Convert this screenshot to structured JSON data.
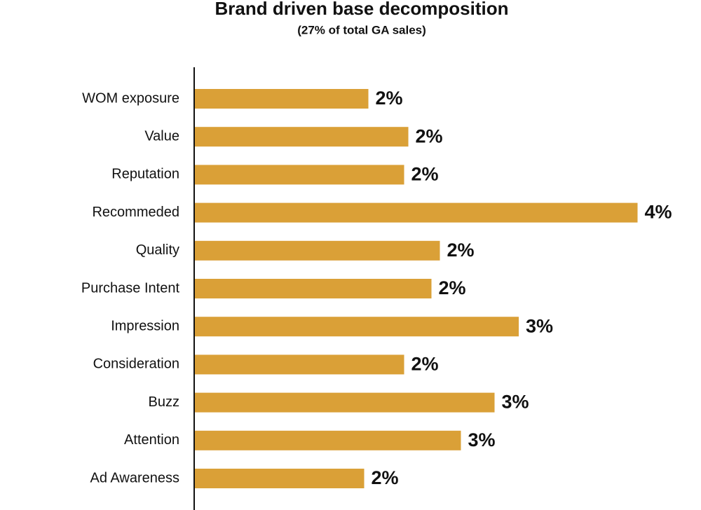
{
  "chart_data": {
    "type": "bar",
    "orientation": "horizontal",
    "title": "Brand driven base decomposition",
    "subtitle": "(27% of total GA sales)",
    "categories": [
      "WOM exposure",
      "Value",
      "Reputation",
      "Recommeded",
      "Quality",
      "Purchase Intent",
      "Impression",
      "Consideration",
      "Buzz",
      "Attention",
      "Ad Awareness"
    ],
    "values": [
      1.65,
      2.03,
      1.99,
      4.21,
      2.33,
      2.25,
      3.08,
      1.99,
      2.85,
      2.53,
      1.61
    ],
    "value_labels": [
      "2%",
      "2%",
      "2%",
      "4%",
      "2%",
      "2%",
      "3%",
      "2%",
      "3%",
      "3%",
      "2%"
    ],
    "color": "#DAA037"
  }
}
